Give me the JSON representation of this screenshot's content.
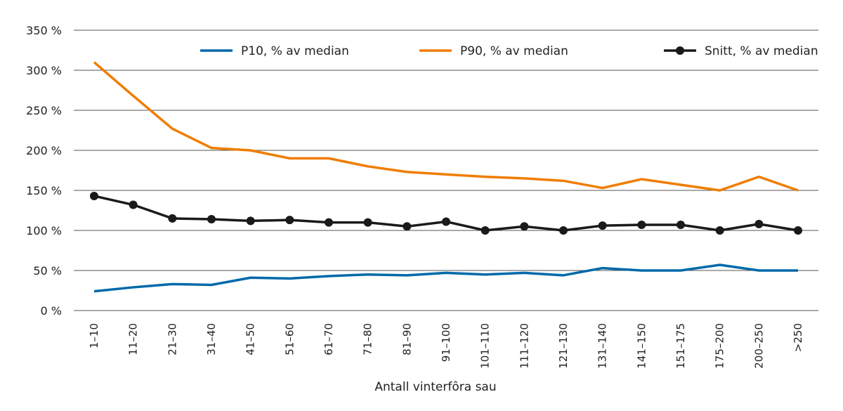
{
  "chart_data": {
    "type": "line",
    "xlabel": "Antall vinterfôra sau",
    "ylabel": "",
    "ylim": [
      0,
      350
    ],
    "yticks": [
      "0 %",
      "50 %",
      "100 %",
      "150 %",
      "200 %",
      "250 %",
      "300 %",
      "350 %"
    ],
    "ytick_values": [
      0,
      50,
      100,
      150,
      200,
      250,
      300,
      350
    ],
    "grid": true,
    "legend_placement": "top",
    "categories": [
      "1–10",
      "11–20",
      "21–30",
      "31–40",
      "41–50",
      "51–60",
      "61–70",
      "71–80",
      "81–90",
      "91–100",
      "101–110",
      "111–120",
      "121–130",
      "131–140",
      "141–150",
      "151–175",
      "175–200",
      "200–250",
      ">250"
    ],
    "series": [
      {
        "name": "P10, % av median",
        "color": "#0069aa",
        "markers": false,
        "values": [
          24,
          29,
          33,
          32,
          41,
          40,
          43,
          45,
          44,
          47,
          45,
          47,
          44,
          53,
          50,
          50,
          57,
          50,
          50
        ]
      },
      {
        "name": "P90, % av median",
        "color": "#f07d00",
        "markers": false,
        "values": [
          310,
          268,
          227,
          203,
          200,
          190,
          190,
          180,
          173,
          170,
          167,
          165,
          162,
          153,
          164,
          157,
          150,
          167,
          150
        ]
      },
      {
        "name": "Snitt, % av median",
        "color": "#1a1a1a",
        "markers": true,
        "values": [
          143,
          132,
          115,
          114,
          112,
          113,
          110,
          110,
          105,
          111,
          100,
          105,
          100,
          106,
          107,
          107,
          100,
          108,
          100
        ]
      }
    ]
  }
}
